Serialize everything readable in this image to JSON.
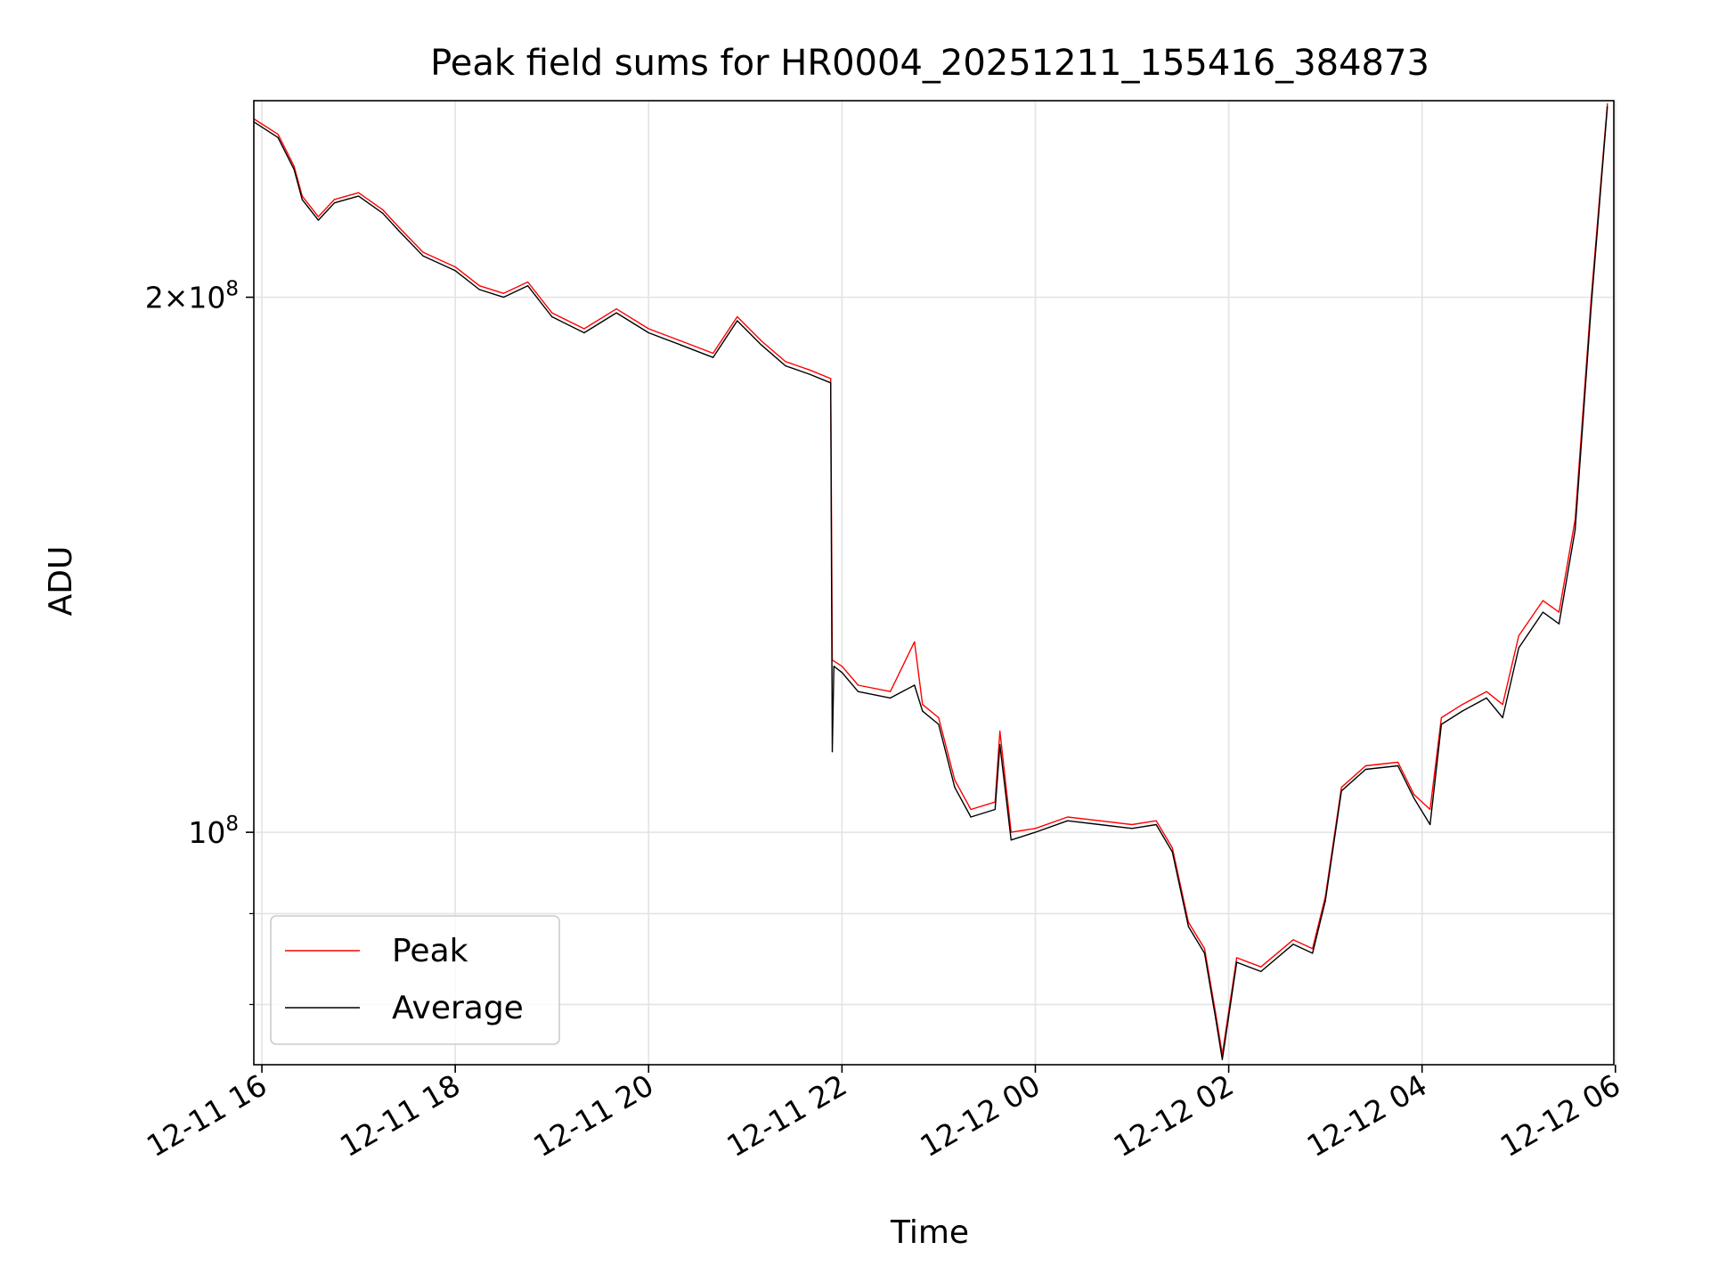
{
  "chart_data": {
    "type": "line",
    "title": "Peak field sums for HR0004_20251211_155416_384873",
    "xlabel": "Time",
    "ylabel": "ADU",
    "y_scale": "log",
    "ylim": [
      74000000,
      258000000
    ],
    "xlim": [
      "2025-12-11 15:55",
      "2025-12-12 05:59"
    ],
    "grid": true,
    "legend_position": "lower-left",
    "x_ticks": [
      {
        "t": "2025-12-11 16:00",
        "label": "12-11 16"
      },
      {
        "t": "2025-12-11 18:00",
        "label": "12-11 18"
      },
      {
        "t": "2025-12-11 20:00",
        "label": "12-11 20"
      },
      {
        "t": "2025-12-11 22:00",
        "label": "12-11 22"
      },
      {
        "t": "2025-12-12 00:00",
        "label": "12-12 00"
      },
      {
        "t": "2025-12-12 02:00",
        "label": "12-12 02"
      },
      {
        "t": "2025-12-12 04:00",
        "label": "12-12 04"
      },
      {
        "t": "2025-12-12 06:00",
        "label": "12-12 06"
      }
    ],
    "y_major_ticks": [
      {
        "value": 100000000,
        "base": "10",
        "exp": "8",
        "mantissa": ""
      },
      {
        "value": 200000000,
        "base": "10",
        "exp": "8",
        "mantissa": "2"
      }
    ],
    "y_minor_ticks": [
      80000000,
      90000000
    ],
    "series": [
      {
        "name": "Peak",
        "color": "#ff0000",
        "points": [
          [
            "2025-12-11 15:55",
            252000000
          ],
          [
            "2025-12-11 16:10",
            247000000
          ],
          [
            "2025-12-11 16:20",
            237000000
          ],
          [
            "2025-12-11 16:25",
            228000000
          ],
          [
            "2025-12-11 16:35",
            222000000
          ],
          [
            "2025-12-11 16:45",
            227000000
          ],
          [
            "2025-12-11 17:00",
            229000000
          ],
          [
            "2025-12-11 17:15",
            224000000
          ],
          [
            "2025-12-11 17:25",
            219000000
          ],
          [
            "2025-12-11 17:40",
            212000000
          ],
          [
            "2025-12-11 18:00",
            208000000
          ],
          [
            "2025-12-11 18:15",
            203000000
          ],
          [
            "2025-12-11 18:30",
            201000000
          ],
          [
            "2025-12-11 18:45",
            204000000
          ],
          [
            "2025-12-11 19:00",
            196000000
          ],
          [
            "2025-12-11 19:20",
            192000000
          ],
          [
            "2025-12-11 19:40",
            197000000
          ],
          [
            "2025-12-11 20:00",
            192000000
          ],
          [
            "2025-12-11 20:20",
            189000000
          ],
          [
            "2025-12-11 20:40",
            186000000
          ],
          [
            "2025-12-11 20:55",
            195000000
          ],
          [
            "2025-12-11 21:10",
            189000000
          ],
          [
            "2025-12-11 21:25",
            184000000
          ],
          [
            "2025-12-11 21:40",
            182000000
          ],
          [
            "2025-12-11 21:53",
            180000000
          ],
          [
            "2025-12-11 21:54",
            125000000
          ],
          [
            "2025-12-11 22:00",
            124000000
          ],
          [
            "2025-12-11 22:10",
            121000000
          ],
          [
            "2025-12-11 22:30",
            120000000
          ],
          [
            "2025-12-11 22:45",
            128000000
          ],
          [
            "2025-12-11 22:50",
            118000000
          ],
          [
            "2025-12-11 23:00",
            116000000
          ],
          [
            "2025-12-11 23:10",
            107000000
          ],
          [
            "2025-12-11 23:20",
            103000000
          ],
          [
            "2025-12-11 23:35",
            104000000
          ],
          [
            "2025-12-11 23:38",
            114000000
          ],
          [
            "2025-12-11 23:45",
            100000000
          ],
          [
            "2025-12-12 00:00",
            100500000
          ],
          [
            "2025-12-12 00:20",
            102000000
          ],
          [
            "2025-12-12 00:40",
            101500000
          ],
          [
            "2025-12-12 01:00",
            101000000
          ],
          [
            "2025-12-12 01:15",
            101500000
          ],
          [
            "2025-12-12 01:25",
            98000000
          ],
          [
            "2025-12-12 01:35",
            89000000
          ],
          [
            "2025-12-12 01:45",
            86000000
          ],
          [
            "2025-12-12 01:52",
            79000000
          ],
          [
            "2025-12-12 01:56",
            75000000
          ],
          [
            "2025-12-12 02:05",
            85000000
          ],
          [
            "2025-12-12 02:20",
            84000000
          ],
          [
            "2025-12-12 02:40",
            87000000
          ],
          [
            "2025-12-12 02:52",
            86000000
          ],
          [
            "2025-12-12 03:00",
            92000000
          ],
          [
            "2025-12-12 03:10",
            106000000
          ],
          [
            "2025-12-12 03:25",
            109000000
          ],
          [
            "2025-12-12 03:45",
            109500000
          ],
          [
            "2025-12-12 03:55",
            105000000
          ],
          [
            "2025-12-12 04:05",
            103000000
          ],
          [
            "2025-12-12 04:12",
            116000000
          ],
          [
            "2025-12-12 04:25",
            118000000
          ],
          [
            "2025-12-12 04:40",
            120000000
          ],
          [
            "2025-12-12 04:50",
            118000000
          ],
          [
            "2025-12-12 05:00",
            129000000
          ],
          [
            "2025-12-12 05:15",
            135000000
          ],
          [
            "2025-12-12 05:25",
            133000000
          ],
          [
            "2025-12-12 05:35",
            150000000
          ],
          [
            "2025-12-12 05:45",
            200000000
          ],
          [
            "2025-12-12 05:55",
            257000000
          ]
        ]
      },
      {
        "name": "Average",
        "color": "#000000",
        "points": [
          [
            "2025-12-11 15:55",
            251000000
          ],
          [
            "2025-12-11 16:10",
            246000000
          ],
          [
            "2025-12-11 16:20",
            236000000
          ],
          [
            "2025-12-11 16:25",
            227000000
          ],
          [
            "2025-12-11 16:35",
            221000000
          ],
          [
            "2025-12-11 16:45",
            226000000
          ],
          [
            "2025-12-11 17:00",
            228000000
          ],
          [
            "2025-12-11 17:15",
            223000000
          ],
          [
            "2025-12-11 17:25",
            218000000
          ],
          [
            "2025-12-11 17:40",
            211000000
          ],
          [
            "2025-12-11 18:00",
            207000000
          ],
          [
            "2025-12-11 18:15",
            202000000
          ],
          [
            "2025-12-11 18:30",
            200000000
          ],
          [
            "2025-12-11 18:45",
            203000000
          ],
          [
            "2025-12-11 19:00",
            195000000
          ],
          [
            "2025-12-11 19:20",
            191000000
          ],
          [
            "2025-12-11 19:40",
            196000000
          ],
          [
            "2025-12-11 20:00",
            191000000
          ],
          [
            "2025-12-11 20:20",
            188000000
          ],
          [
            "2025-12-11 20:40",
            185000000
          ],
          [
            "2025-12-11 20:55",
            194000000
          ],
          [
            "2025-12-11 21:10",
            188000000
          ],
          [
            "2025-12-11 21:25",
            183000000
          ],
          [
            "2025-12-11 21:40",
            181000000
          ],
          [
            "2025-12-11 21:53",
            179000000
          ],
          [
            "2025-12-11 21:54",
            111000000
          ],
          [
            "2025-12-11 21:55",
            124000000
          ],
          [
            "2025-12-11 22:00",
            123000000
          ],
          [
            "2025-12-11 22:10",
            120000000
          ],
          [
            "2025-12-11 22:30",
            119000000
          ],
          [
            "2025-12-11 22:45",
            121000000
          ],
          [
            "2025-12-11 22:50",
            117000000
          ],
          [
            "2025-12-11 23:00",
            115000000
          ],
          [
            "2025-12-11 23:10",
            106000000
          ],
          [
            "2025-12-11 23:20",
            102000000
          ],
          [
            "2025-12-11 23:35",
            103000000
          ],
          [
            "2025-12-11 23:38",
            112000000
          ],
          [
            "2025-12-11 23:45",
            99000000
          ],
          [
            "2025-12-12 00:00",
            100000000
          ],
          [
            "2025-12-12 00:20",
            101500000
          ],
          [
            "2025-12-12 00:40",
            101000000
          ],
          [
            "2025-12-12 01:00",
            100500000
          ],
          [
            "2025-12-12 01:15",
            101000000
          ],
          [
            "2025-12-12 01:25",
            97500000
          ],
          [
            "2025-12-12 01:35",
            88500000
          ],
          [
            "2025-12-12 01:45",
            85500000
          ],
          [
            "2025-12-12 01:52",
            78500000
          ],
          [
            "2025-12-12 01:56",
            74500000
          ],
          [
            "2025-12-12 02:05",
            84500000
          ],
          [
            "2025-12-12 02:20",
            83500000
          ],
          [
            "2025-12-12 02:40",
            86500000
          ],
          [
            "2025-12-12 02:52",
            85500000
          ],
          [
            "2025-12-12 03:00",
            91500000
          ],
          [
            "2025-12-12 03:10",
            105500000
          ],
          [
            "2025-12-12 03:25",
            108500000
          ],
          [
            "2025-12-12 03:45",
            109000000
          ],
          [
            "2025-12-12 03:55",
            104500000
          ],
          [
            "2025-12-12 04:05",
            101000000
          ],
          [
            "2025-12-12 04:12",
            115000000
          ],
          [
            "2025-12-12 04:25",
            117000000
          ],
          [
            "2025-12-12 04:40",
            119000000
          ],
          [
            "2025-12-12 04:50",
            116000000
          ],
          [
            "2025-12-12 05:00",
            127000000
          ],
          [
            "2025-12-12 05:15",
            133000000
          ],
          [
            "2025-12-12 05:25",
            131000000
          ],
          [
            "2025-12-12 05:35",
            148000000
          ],
          [
            "2025-12-12 05:45",
            198000000
          ],
          [
            "2025-12-12 05:55",
            256000000
          ]
        ]
      }
    ]
  }
}
